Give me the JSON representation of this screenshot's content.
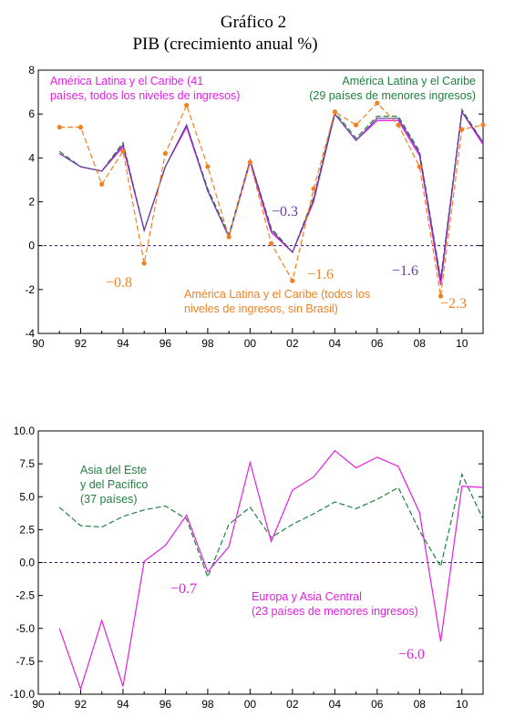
{
  "header": {
    "title": "Gráfico 2",
    "subtitle": "PIB (crecimiento anual %)"
  },
  "colors": {
    "magenta": "#e020e0",
    "purple": "#6a3aa8",
    "green": "#208040",
    "orange": "#f08020",
    "zero_line": "#3c1060"
  },
  "chart_data": [
    {
      "type": "line",
      "title": "",
      "x": [
        91,
        92,
        93,
        94,
        95,
        96,
        97,
        98,
        99,
        100,
        101,
        102,
        103,
        104,
        105,
        106,
        107,
        108,
        109,
        110,
        111
      ],
      "x_tick_labels": [
        "90",
        "92",
        "94",
        "96",
        "98",
        "00",
        "02",
        "04",
        "06",
        "08",
        "10"
      ],
      "xlim": [
        90,
        111
      ],
      "ylim": [
        -4,
        8
      ],
      "y_tick_labels": [
        "-4",
        "-2",
        "0",
        "2",
        "4",
        "6",
        "8"
      ],
      "grid": false,
      "series": [
        {
          "name": "América Latina y el Caribe (41 países, todos los niveles de ingresos)",
          "color": "#e020e0",
          "style": "solid",
          "values": [
            4.2,
            3.6,
            3.4,
            4.5,
            0.7,
            3.6,
            5.4,
            2.5,
            0.4,
            3.8,
            0.6,
            -0.3,
            2.0,
            6.0,
            4.8,
            5.7,
            5.7,
            4.1,
            -1.8,
            6.1,
            4.6
          ]
        },
        {
          "name": "América Latina y el Caribe (29 países de menores ingresos)",
          "color": "#208040",
          "style": "dashed",
          "values": [
            4.3,
            3.6,
            3.4,
            4.7,
            0.7,
            3.6,
            5.5,
            2.6,
            0.5,
            3.9,
            0.8,
            -0.3,
            2.2,
            6.1,
            4.9,
            5.9,
            5.9,
            4.3,
            -1.5,
            6.2,
            4.7
          ]
        },
        {
          "name": "",
          "color": "#6a3aa8",
          "style": "solid",
          "values": [
            4.2,
            3.6,
            3.4,
            4.6,
            0.7,
            3.6,
            5.5,
            2.5,
            0.4,
            3.9,
            0.7,
            -0.3,
            2.1,
            6.0,
            4.8,
            5.8,
            5.8,
            4.2,
            -1.6,
            6.1,
            4.7
          ]
        },
        {
          "name": "América Latina y el Caribe (todos los niveles de ingresos, sin Brasil)",
          "color": "#f08020",
          "style": "dashed-markers",
          "values": [
            5.4,
            5.4,
            2.8,
            4.3,
            -0.8,
            4.2,
            6.4,
            3.6,
            0.4,
            3.8,
            0.1,
            -1.6,
            2.6,
            6.1,
            5.5,
            6.5,
            5.5,
            3.6,
            -2.3,
            5.3,
            5.5
          ]
        }
      ],
      "annotations": [
        {
          "text": "América Latina y el Caribe (41",
          "color": "#e020e0"
        },
        {
          "text": "países, todos los niveles de ingresos)",
          "color": "#e020e0"
        },
        {
          "text": "América Latina y el Caribe",
          "color": "#208040"
        },
        {
          "text": "(29 países de menores ingresos)",
          "color": "#208040"
        },
        {
          "text": "América Latina y el Caribe (todos los",
          "color": "#f08020"
        },
        {
          "text": "niveles de ingresos, sin Brasil)",
          "color": "#f08020"
        },
        {
          "text": "−0.3",
          "color": "#6a3aa8",
          "num": true
        },
        {
          "text": "−0.8",
          "color": "#f08020",
          "num": true
        },
        {
          "text": "−1.6",
          "color": "#f08020",
          "num": true
        },
        {
          "text": "−1.6",
          "color": "#6a3aa8",
          "num": true
        },
        {
          "text": "−2.3",
          "color": "#f08020",
          "num": true
        }
      ]
    },
    {
      "type": "line",
      "title": "",
      "x": [
        91,
        92,
        93,
        94,
        95,
        96,
        97,
        98,
        99,
        100,
        101,
        102,
        103,
        104,
        105,
        106,
        107,
        108,
        109,
        110,
        111
      ],
      "x_tick_labels": [
        "90",
        "92",
        "94",
        "96",
        "98",
        "00",
        "02",
        "04",
        "06",
        "08",
        "10"
      ],
      "xlim": [
        90,
        111
      ],
      "ylim": [
        -10,
        10
      ],
      "y_tick_labels": [
        "-10.0",
        "-7.5",
        "-5.0",
        "-2.5",
        "0.0",
        "2.5",
        "5.0",
        "7.5",
        "10.0"
      ],
      "grid": false,
      "series": [
        {
          "name": "Asia del Este y del Pacífico (37 países)",
          "color": "#208040",
          "style": "dashed",
          "values": [
            4.2,
            2.8,
            2.7,
            3.5,
            4.0,
            4.3,
            3.3,
            -1.1,
            2.9,
            4.2,
            1.9,
            2.9,
            3.7,
            4.6,
            4.1,
            4.8,
            5.7,
            2.4,
            -0.3,
            6.7,
            3.3
          ]
        },
        {
          "name": "Europa y Asia Central (23 países de menores ingresos)",
          "color": "#e020e0",
          "style": "solid",
          "values": [
            -5.0,
            -9.6,
            -4.4,
            -9.4,
            0.1,
            1.3,
            3.6,
            -0.7,
            1.2,
            7.6,
            1.6,
            5.5,
            6.5,
            8.5,
            7.2,
            8.0,
            7.3,
            3.8,
            -6.0,
            5.8,
            5.7
          ]
        }
      ],
      "annotations": [
        {
          "text": "Asia del Este",
          "color": "#208040"
        },
        {
          "text": "y del Pacífico",
          "color": "#208040"
        },
        {
          "text": "(37 países)",
          "color": "#208040"
        },
        {
          "text": "Europa y Asia Central",
          "color": "#e020e0"
        },
        {
          "text": "(23 países de menores ingresos)",
          "color": "#e020e0"
        },
        {
          "text": "−0.7",
          "color": "#e020e0",
          "num": true
        },
        {
          "text": "−6.0",
          "color": "#e020e0",
          "num": true
        }
      ]
    }
  ]
}
